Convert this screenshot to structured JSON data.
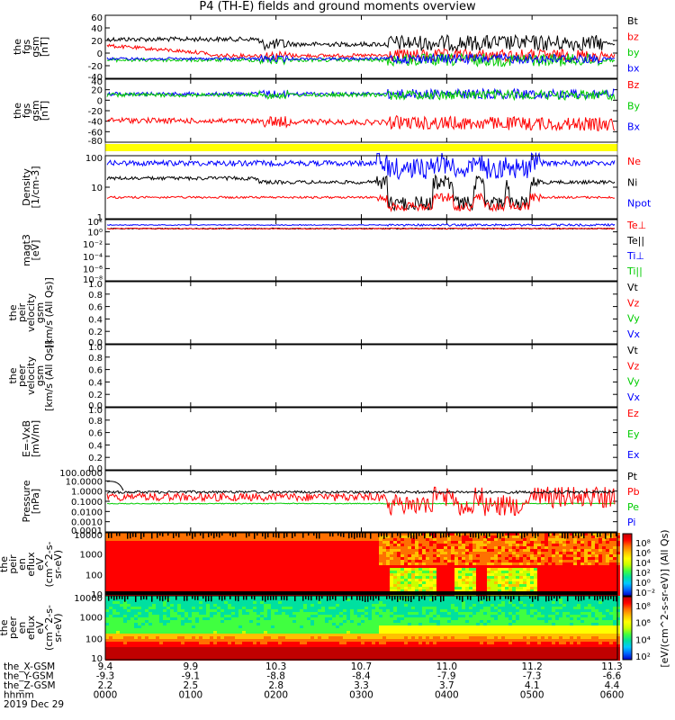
{
  "title": "P4 (TH-E) fields and ground moments overview",
  "panels": [
    {
      "id": "p1",
      "ylabel": [
        "the",
        "fgs",
        "gsm",
        "[nT]"
      ],
      "ticks": [
        "60",
        "40",
        "20",
        "0",
        "-20",
        "-40"
      ],
      "legend": [
        {
          "t": "Bt",
          "c": "#000000"
        },
        {
          "t": "bz",
          "c": "#ff0000"
        },
        {
          "t": "by",
          "c": "#00cc00"
        },
        {
          "t": "bx",
          "c": "#0000ff"
        }
      ]
    },
    {
      "id": "p2",
      "ylabel": [
        "the",
        "fgs",
        "gsm",
        "[nT]"
      ],
      "ticks": [
        "40",
        "20",
        "0",
        "-20",
        "-40",
        "-60",
        "-80"
      ],
      "legend": [
        {
          "t": "Bz",
          "c": "#ff0000"
        },
        {
          "t": "By",
          "c": "#00cc00"
        },
        {
          "t": "Bx",
          "c": "#0000ff"
        }
      ]
    },
    {
      "id": "p3",
      "ylabel": [
        "Density",
        "[1/cm-3]"
      ],
      "ticks": [
        "100",
        "10",
        "1"
      ],
      "legend": [
        {
          "t": "Ne",
          "c": "#ff0000"
        },
        {
          "t": "Ni",
          "c": "#000000"
        },
        {
          "t": "Npot",
          "c": "#0000ff"
        }
      ]
    },
    {
      "id": "p4",
      "ylabel": [
        "magt3",
        "[eV]"
      ],
      "ticks": [
        "10²",
        "10⁰",
        "10⁻²",
        "10⁻⁴",
        "10⁻⁶",
        "10⁻⁸"
      ],
      "legend": [
        {
          "t": "Te⊥",
          "c": "#ff0000"
        },
        {
          "t": "Te||",
          "c": "#000000"
        },
        {
          "t": "Ti⊥",
          "c": "#0000ff"
        },
        {
          "t": "Ti||",
          "c": "#00cc00"
        }
      ]
    },
    {
      "id": "p5",
      "ylabel": [
        "the",
        "peir",
        "velocity",
        "gsm",
        "[km/s (All Qs)]"
      ],
      "ticks": [
        "1.0",
        "0.8",
        "0.6",
        "0.4",
        "0.2",
        "0.0"
      ],
      "legend": [
        {
          "t": "Vt",
          "c": "#000000"
        },
        {
          "t": "Vz",
          "c": "#ff0000"
        },
        {
          "t": "Vy",
          "c": "#00cc00"
        },
        {
          "t": "Vx",
          "c": "#0000ff"
        }
      ]
    },
    {
      "id": "p6",
      "ylabel": [
        "the",
        "peer",
        "velocity",
        "gsm",
        "[km/s (All Qs)]"
      ],
      "ticks": [
        "1.0",
        "0.8",
        "0.6",
        "0.4",
        "0.2",
        "0.0"
      ],
      "legend": [
        {
          "t": "Vt",
          "c": "#000000"
        },
        {
          "t": "Vz",
          "c": "#ff0000"
        },
        {
          "t": "Vy",
          "c": "#00cc00"
        },
        {
          "t": "Vx",
          "c": "#0000ff"
        }
      ]
    },
    {
      "id": "p7",
      "ylabel": [
        "E=-VxB",
        "[mV/m]"
      ],
      "ticks": [
        "1.0",
        "0.8",
        "0.6",
        "0.4",
        "0.2",
        "0.0"
      ],
      "legend": [
        {
          "t": "Ez",
          "c": "#ff0000"
        },
        {
          "t": "Ey",
          "c": "#00cc00"
        },
        {
          "t": "Ex",
          "c": "#0000ff"
        }
      ]
    },
    {
      "id": "p8",
      "ylabel": [
        "Pressure",
        "[nPa]"
      ],
      "ticks": [
        "100.0000",
        "10.0000",
        "1.0000",
        "0.1000",
        "0.0100",
        "0.0010",
        "0.0001"
      ],
      "legend": [
        {
          "t": "Pt",
          "c": "#000000"
        },
        {
          "t": "Pb",
          "c": "#ff0000"
        },
        {
          "t": "Pe",
          "c": "#00cc00"
        },
        {
          "t": "Pi",
          "c": "#0000ff"
        }
      ]
    },
    {
      "id": "p9",
      "ylabel": [
        "the",
        "peir",
        "en",
        "eflux",
        "eV",
        "(cm^2-s-",
        "sr-eV)"
      ],
      "ticks": [
        "10000",
        "1000",
        "100",
        "10"
      ],
      "legend": []
    },
    {
      "id": "p10",
      "ylabel": [
        "the",
        "peer",
        "en",
        "eflux",
        "eV",
        "(cm^2-s-",
        "sr-eV)"
      ],
      "ticks": [
        "10000",
        "1000",
        "100",
        "10"
      ],
      "legend": []
    }
  ],
  "colorbar1": {
    "ticks": [
      "10⁸",
      "10⁶",
      "10⁴",
      "10²",
      "10⁰",
      "10⁻²"
    ],
    "label": "[eV/(cm^2-s-sr-eV)] (All Qs)"
  },
  "colorbar2": {
    "ticks": [
      "10⁸",
      "10⁶",
      "10⁴",
      "10²"
    ]
  },
  "xaxis": {
    "row_labels": [
      "the_X-GSM",
      "the_Y-GSM",
      "the_Z-GSM",
      "hhmm",
      "2019 Dec 29"
    ],
    "columns": [
      [
        "9.4",
        "-9.3",
        "2.2",
        "0000"
      ],
      [
        "9.9",
        "-9.1",
        "2.5",
        "0100"
      ],
      [
        "10.3",
        "-8.8",
        "2.8",
        "0200"
      ],
      [
        "10.7",
        "-8.4",
        "3.3",
        "0300"
      ],
      [
        "11.0",
        "-7.9",
        "3.7",
        "0400"
      ],
      [
        "11.2",
        "-7.3",
        "4.1",
        "0500"
      ],
      [
        "11.3",
        "-6.6",
        "4.4",
        "0600"
      ]
    ]
  },
  "chart_data": [
    {
      "type": "line",
      "title": "P4 (TH-E) fields and ground moments overview",
      "ylabel": "the fgs gsm [nT]",
      "ylim": [
        -40,
        60
      ],
      "x": [
        "0000",
        "0100",
        "0200",
        "0300",
        "0400",
        "0500",
        "0600"
      ],
      "series": [
        {
          "name": "Bt",
          "values": [
            22,
            20,
            16,
            14,
            12,
            14,
            15
          ]
        },
        {
          "name": "bz",
          "values": [
            10,
            0,
            -2,
            -5,
            -5,
            -5,
            -5
          ]
        },
        {
          "name": "by",
          "values": [
            -12,
            -12,
            -10,
            -8,
            -8,
            -8,
            -10
          ]
        },
        {
          "name": "bx",
          "values": [
            -10,
            -10,
            -10,
            -10,
            -8,
            -10,
            -10
          ]
        }
      ]
    },
    {
      "type": "line",
      "ylabel": "the fgs gsm [nT]",
      "ylim": [
        -80,
        40
      ],
      "x": [
        "0000",
        "0100",
        "0200",
        "0300",
        "0400",
        "0500",
        "0600"
      ],
      "series": [
        {
          "name": "Bz",
          "values": [
            -35,
            -40,
            -40,
            -42,
            -45,
            -45,
            -45
          ]
        },
        {
          "name": "By",
          "values": [
            8,
            10,
            12,
            15,
            12,
            10,
            12
          ]
        },
        {
          "name": "Bx",
          "values": [
            10,
            10,
            12,
            15,
            15,
            12,
            12
          ]
        }
      ]
    },
    {
      "type": "line",
      "ylabel": "Density [1/cm-3]",
      "ylim": [
        1,
        300
      ],
      "log_y": true,
      "x": [
        "0000",
        "0100",
        "0200",
        "0300",
        "0400",
        "0500",
        "0600"
      ],
      "series": [
        {
          "name": "Ne",
          "values": [
            7,
            7,
            7,
            7,
            3,
            3,
            7
          ]
        },
        {
          "name": "Ni",
          "values": [
            40,
            40,
            30,
            30,
            25,
            25,
            25
          ]
        },
        {
          "name": "Npot",
          "values": [
            160,
            160,
            140,
            160,
            100,
            100,
            150
          ]
        }
      ]
    },
    {
      "type": "line",
      "ylabel": "Pressure [nPa]",
      "ylim": [
        0.0001,
        100
      ],
      "log_y": true,
      "x": [
        "0000",
        "0100",
        "0200",
        "0300",
        "0400",
        "0500",
        "0600"
      ],
      "series": [
        {
          "name": "Pt",
          "values": [
            0.8,
            0.8,
            0.8,
            0.8,
            0.8,
            0.8,
            0.8
          ]
        },
        {
          "name": "Pb",
          "values": [
            0.3,
            0.25,
            0.2,
            0.2,
            0.05,
            0.07,
            0.1
          ]
        },
        {
          "name": "Pe",
          "values": [
            0.05,
            0.05,
            0.05,
            0.05,
            0.05,
            0.05,
            0.05
          ]
        }
      ]
    },
    {
      "type": "heatmap",
      "ylabel": "the peir en eflux eV (cm^2-s-sr-eV)",
      "ylim": [
        7,
        20000
      ],
      "log_y": true
    },
    {
      "type": "heatmap",
      "ylabel": "the peer en eflux eV (cm^2-s-sr-eV)",
      "ylim": [
        7,
        20000
      ],
      "log_y": true
    }
  ]
}
